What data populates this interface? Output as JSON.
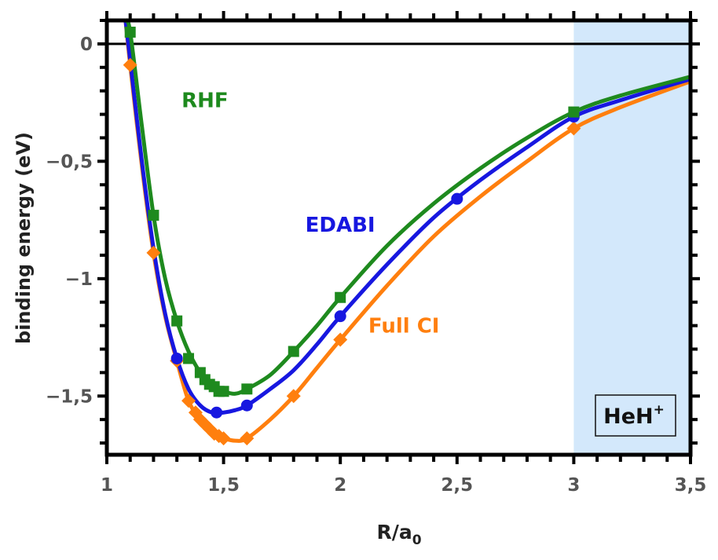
{
  "chart_data": {
    "type": "line",
    "xlabel": "R/a",
    "xlabel_sub": "0",
    "ylabel": "binding energy (eV)",
    "xlim": [
      1.0,
      3.5
    ],
    "ylim": [
      -1.75,
      0.1
    ],
    "xticks": [
      1,
      1.5,
      2,
      2.5,
      3,
      3.5
    ],
    "xtick_labels": [
      "1",
      "1,5",
      "2",
      "2,5",
      "3",
      "3,5"
    ],
    "yticks": [
      0,
      -0.5,
      -1,
      -1.5
    ],
    "ytick_labels": [
      "0",
      "−0,5",
      "−1",
      "−1,5"
    ],
    "shaded_region": {
      "x_from": 3.0,
      "x_to": 3.5,
      "color": "#d3e8fb"
    },
    "box_label": {
      "main": "HeH",
      "sup": "+"
    },
    "series": [
      {
        "name": "RHF",
        "color": "#1e8a1e",
        "marker": "square",
        "x": [
          1.1,
          1.2,
          1.3,
          1.35,
          1.4,
          1.42,
          1.44,
          1.46,
          1.48,
          1.5,
          1.6,
          1.8,
          2.0,
          3.0
        ],
        "y": [
          0.05,
          -0.73,
          -1.18,
          -1.34,
          -1.4,
          -1.43,
          -1.45,
          -1.46,
          -1.48,
          -1.48,
          -1.47,
          -1.31,
          -1.08,
          -0.29
        ],
        "curve_x": [
          1.08,
          1.1,
          1.15,
          1.2,
          1.25,
          1.3,
          1.35,
          1.4,
          1.45,
          1.5,
          1.55,
          1.6,
          1.7,
          1.8,
          1.9,
          2.0,
          2.2,
          2.4,
          2.6,
          2.8,
          3.0,
          3.2,
          3.5
        ],
        "curve_y": [
          0.1,
          0.05,
          -0.35,
          -0.73,
          -1.0,
          -1.18,
          -1.31,
          -1.4,
          -1.46,
          -1.48,
          -1.49,
          -1.47,
          -1.41,
          -1.31,
          -1.2,
          -1.08,
          -0.86,
          -0.68,
          -0.53,
          -0.4,
          -0.29,
          -0.22,
          -0.14
        ]
      },
      {
        "name": "EDABI",
        "color": "#1717e0",
        "marker": "circle",
        "x": [
          1.3,
          1.47,
          1.6,
          2.0,
          2.5,
          3.0
        ],
        "y": [
          -1.34,
          -1.57,
          -1.54,
          -1.16,
          -0.66,
          -0.31
        ],
        "curve_x": [
          1.08,
          1.1,
          1.15,
          1.2,
          1.25,
          1.3,
          1.35,
          1.4,
          1.45,
          1.5,
          1.55,
          1.6,
          1.7,
          1.8,
          1.9,
          2.0,
          2.2,
          2.4,
          2.6,
          2.8,
          3.0,
          3.2,
          3.5
        ],
        "curve_y": [
          0.1,
          -0.07,
          -0.5,
          -0.87,
          -1.15,
          -1.34,
          -1.47,
          -1.54,
          -1.57,
          -1.57,
          -1.56,
          -1.54,
          -1.47,
          -1.39,
          -1.28,
          -1.16,
          -0.94,
          -0.74,
          -0.58,
          -0.44,
          -0.31,
          -0.24,
          -0.15
        ]
      },
      {
        "name": "Full CI",
        "color": "#ff7f0e",
        "marker": "diamond",
        "x": [
          1.1,
          1.2,
          1.3,
          1.35,
          1.38,
          1.4,
          1.42,
          1.44,
          1.46,
          1.48,
          1.5,
          1.6,
          1.8,
          2.0,
          3.0
        ],
        "y": [
          -0.09,
          -0.89,
          -1.35,
          -1.52,
          -1.57,
          -1.6,
          -1.62,
          -1.64,
          -1.66,
          -1.67,
          -1.68,
          -1.68,
          -1.5,
          -1.26,
          -0.36
        ],
        "curve_x": [
          1.08,
          1.1,
          1.15,
          1.2,
          1.25,
          1.3,
          1.35,
          1.4,
          1.45,
          1.5,
          1.55,
          1.6,
          1.7,
          1.8,
          1.9,
          2.0,
          2.2,
          2.4,
          2.6,
          2.8,
          3.0,
          3.2,
          3.5
        ],
        "curve_y": [
          0.1,
          -0.09,
          -0.52,
          -0.89,
          -1.16,
          -1.35,
          -1.52,
          -1.6,
          -1.66,
          -1.68,
          -1.69,
          -1.68,
          -1.6,
          -1.5,
          -1.38,
          -1.26,
          -1.03,
          -0.82,
          -0.65,
          -0.5,
          -0.36,
          -0.27,
          -0.16
        ]
      }
    ],
    "annotations": [
      {
        "text": "RHF",
        "color": "#1e8a1e",
        "x": 1.32,
        "y": -0.27
      },
      {
        "text": "EDABI",
        "color": "#1717e0",
        "x": 1.85,
        "y": -0.8
      },
      {
        "text": "Full CI",
        "color": "#ff7f0e",
        "x": 2.12,
        "y": -1.23
      }
    ]
  }
}
